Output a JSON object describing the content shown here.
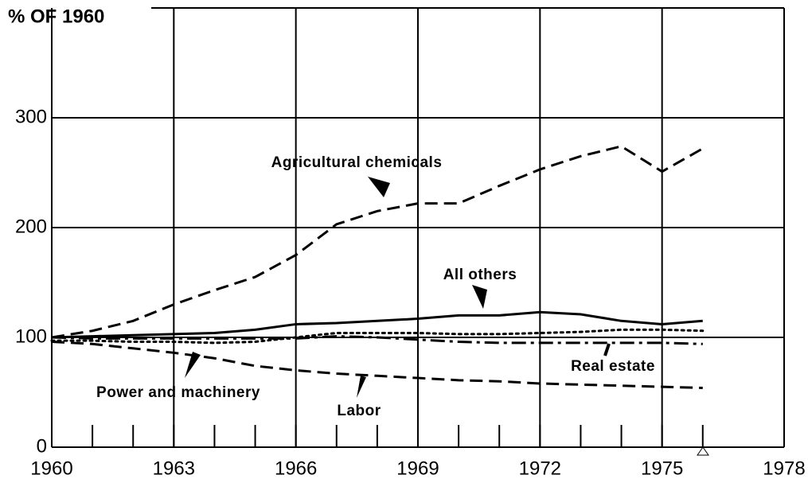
{
  "chart_data": {
    "type": "line",
    "y_axis_label": "% OF 1960",
    "x": [
      1960,
      1961,
      1962,
      1963,
      1964,
      1965,
      1966,
      1967,
      1968,
      1969,
      1970,
      1971,
      1972,
      1973,
      1974,
      1975,
      1976
    ],
    "xlim": [
      1960,
      1978
    ],
    "xticks": [
      1960,
      1963,
      1966,
      1969,
      1972,
      1975,
      1978
    ],
    "ylim": [
      0,
      400
    ],
    "yticks": [
      0,
      100,
      200,
      300
    ],
    "grid": true,
    "series": [
      {
        "name": "Agricultural chemicals",
        "color": "#000000",
        "style": "dashed",
        "values": [
          100,
          106,
          115,
          130,
          143,
          155,
          175,
          203,
          215,
          222,
          222,
          238,
          253,
          265,
          274,
          251,
          272
        ]
      },
      {
        "name": "All others",
        "color": "#000000",
        "style": "solid",
        "values": [
          100,
          101,
          102,
          103,
          104,
          107,
          112,
          113,
          115,
          117,
          120,
          120,
          123,
          121,
          115,
          112,
          115
        ]
      },
      {
        "name": "Power and machinery",
        "color": "#000000",
        "style": "dotted",
        "values": [
          97,
          97,
          96,
          96,
          95,
          96,
          100,
          104,
          104,
          104,
          103,
          103,
          104,
          105,
          107,
          107,
          106
        ]
      },
      {
        "name": "Real estate",
        "color": "#000000",
        "style": "dashdot",
        "values": [
          100,
          99,
          99,
          99,
          99,
          99,
          99,
          101,
          100,
          98,
          96,
          95,
          95,
          95,
          95,
          95,
          94
        ]
      },
      {
        "name": "Labor",
        "color": "#000000",
        "style": "dashed",
        "values": [
          96,
          94,
          90,
          86,
          81,
          74,
          70,
          67,
          65,
          63,
          61,
          60,
          58,
          57,
          56,
          55,
          54
        ]
      }
    ]
  }
}
